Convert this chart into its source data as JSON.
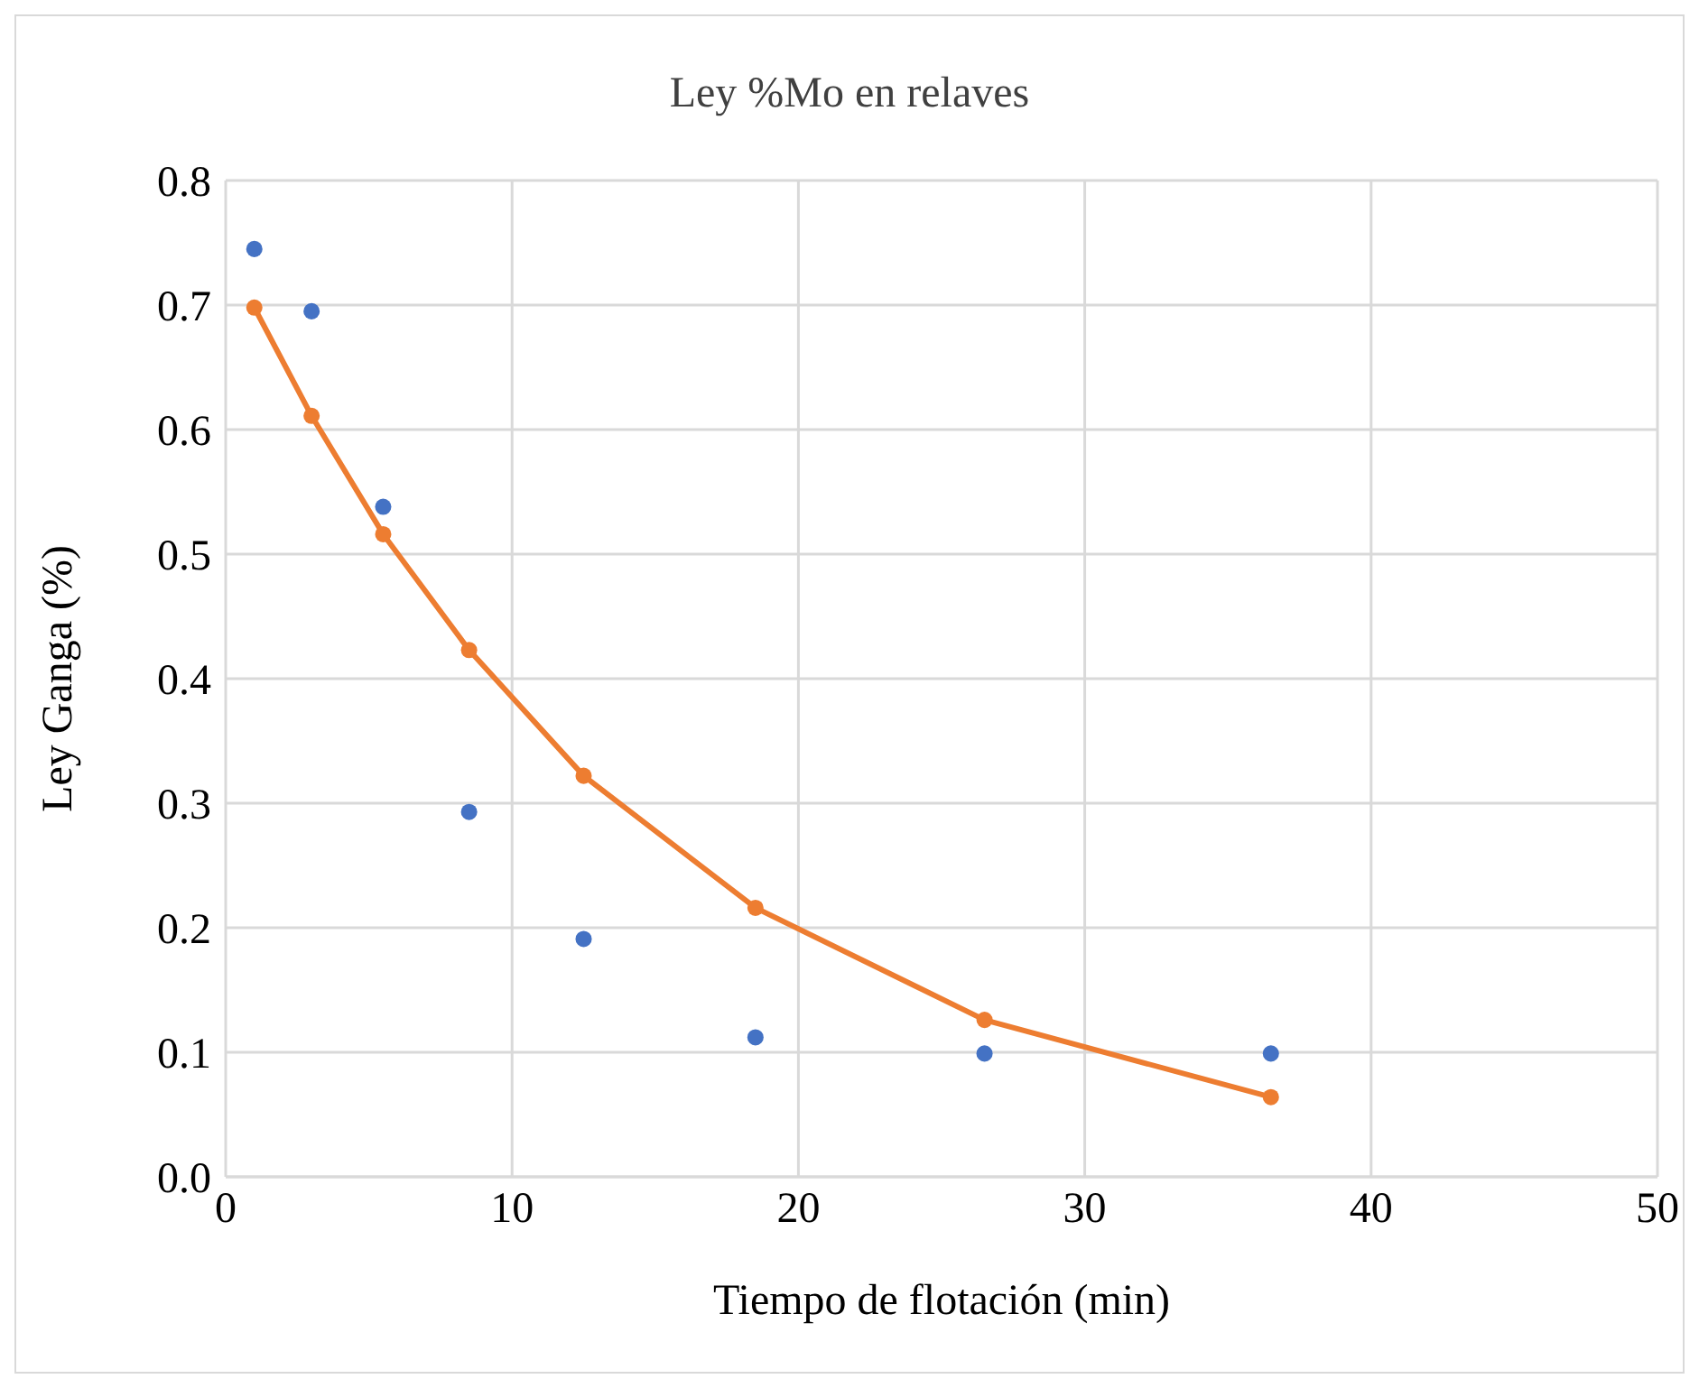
{
  "chart_data": {
    "type": "scatter",
    "title": "Ley %Mo en relaves",
    "xlabel": "Tiempo de flotación (min)",
    "ylabel": "Ley Ganga (%)",
    "xlim": [
      0,
      50
    ],
    "xticks": [
      0,
      10,
      20,
      30,
      40,
      50
    ],
    "ylim": [
      0,
      0.8
    ],
    "yticks": [
      {
        "value": 0,
        "label": "0.0"
      },
      {
        "value": 0.1,
        "label": "0.1"
      },
      {
        "value": 0.2,
        "label": "0.2"
      },
      {
        "value": 0.3,
        "label": "0.3"
      },
      {
        "value": 0.4,
        "label": "0.4"
      },
      {
        "value": 0.5,
        "label": "0.5"
      },
      {
        "value": 0.6,
        "label": "0.6"
      },
      {
        "value": 0.7,
        "label": "0.7"
      },
      {
        "value": 0.8,
        "label": "0.8"
      }
    ],
    "grid": true,
    "marker": "circle",
    "series": [
      {
        "color": "#4472c4",
        "x": [
          1,
          3,
          5.5,
          8.5,
          12.5,
          18.5,
          26.5,
          36.5
        ],
        "values": [
          0.745,
          0.695,
          0.538,
          0.293,
          0.191,
          0.112,
          0.099,
          0.099
        ]
      },
      {
        "type": "line",
        "color": "#ed7d31",
        "x": [
          1,
          3,
          5.5,
          8.5,
          12.5,
          18.5,
          26.5,
          36.5
        ],
        "values": [
          0.698,
          0.611,
          0.516,
          0.423,
          0.322,
          0.216,
          0.126,
          0.064
        ]
      }
    ]
  }
}
